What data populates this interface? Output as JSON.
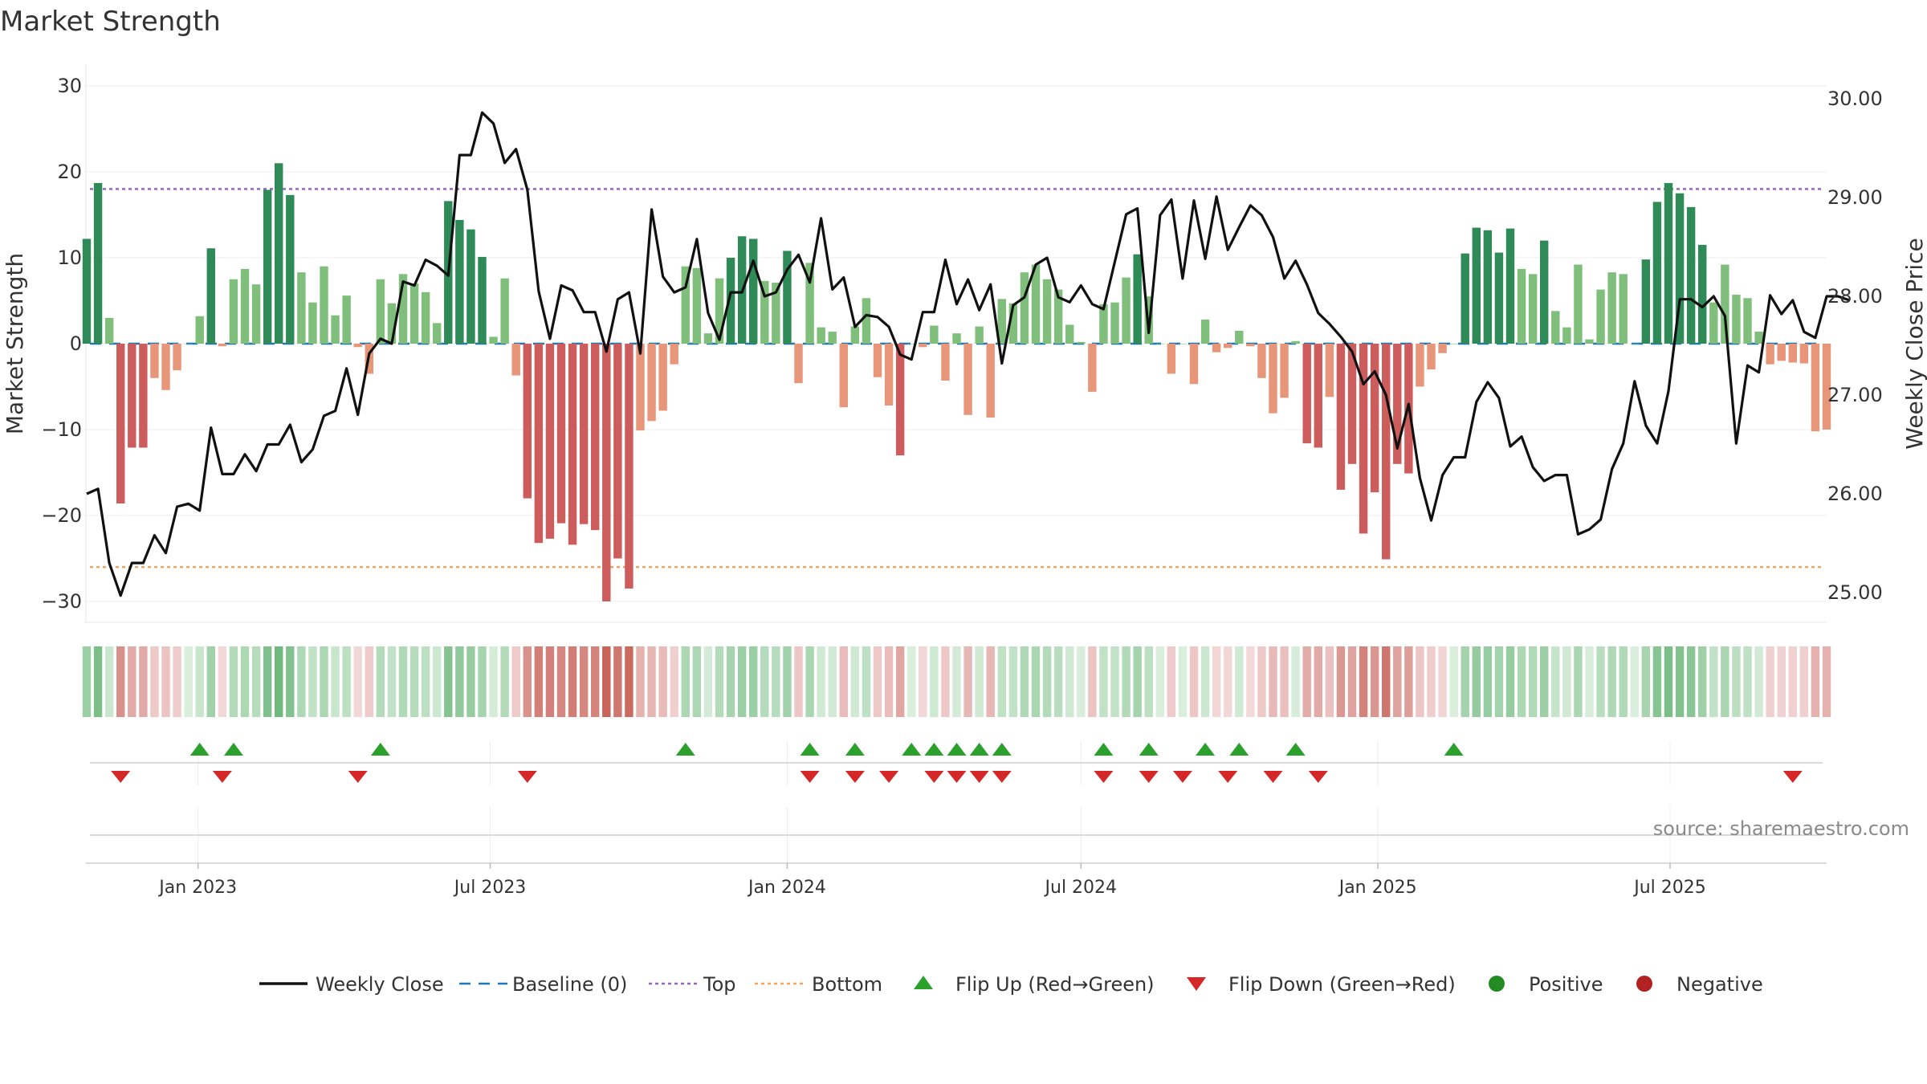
{
  "chart_data": {
    "type": "bar",
    "title": "Market Strength",
    "ylabel_left": "Market Strength",
    "ylabel_right": "Weekly Close Price",
    "ylim_left": [
      -32,
      33
    ],
    "yticks_left": [
      -30,
      -20,
      -10,
      0,
      10,
      20,
      30
    ],
    "ylim_right": [
      24.6,
      30.4
    ],
    "yticks_right": [
      25.0,
      26.0,
      27.0,
      28.0,
      29.0,
      30.0
    ],
    "ytick_labels_right": [
      "25.00",
      "26.00",
      "27.00",
      "28.00",
      "29.00",
      "30.00"
    ],
    "top_line": 18,
    "bottom_line": -26,
    "baseline": 0,
    "start_date": "2022-10-24",
    "end_date": "2025-10-06",
    "x_ticks": [
      {
        "date": "2023-01-01",
        "label": "Jan 2023"
      },
      {
        "date": "2023-07-01",
        "label": "Jul 2023"
      },
      {
        "date": "2024-01-01",
        "label": "Jan 2024"
      },
      {
        "date": "2024-07-01",
        "label": "Jul 2024"
      },
      {
        "date": "2025-01-01",
        "label": "Jan 2025"
      },
      {
        "date": "2025-07-01",
        "label": "Jul 2025"
      }
    ],
    "strength": [
      12.2,
      18.7,
      3.0,
      -18.6,
      -12.1,
      -12.1,
      -4.0,
      -5.4,
      -3.1,
      0,
      3.2,
      11.1,
      -0.3,
      7.5,
      8.7,
      6.9,
      17.9,
      21.0,
      17.3,
      8.3,
      4.8,
      9.0,
      3.3,
      5.6,
      -0.4,
      -3.5,
      7.5,
      4.7,
      8.1,
      7.0,
      6.0,
      2.4,
      16.6,
      14.4,
      13.3,
      10.1,
      0.8,
      7.6,
      -3.7,
      -18.0,
      -23.2,
      -22.7,
      -20.9,
      -23.4,
      -21.0,
      -21.7,
      -30.0,
      -25.0,
      -28.5,
      -10.1,
      -9.0,
      -7.8,
      -2.4,
      9.0,
      8.8,
      1.2,
      7.6,
      10.0,
      12.5,
      12.2,
      7.3,
      7.1,
      10.8,
      -4.6,
      9.4,
      1.9,
      1.4,
      -7.4,
      2.0,
      5.3,
      -3.9,
      -7.2,
      -13.0,
      0,
      -0.4,
      2.1,
      -4.3,
      1.2,
      -8.3,
      2.0,
      -8.6,
      5.2,
      4.7,
      8.3,
      9.2,
      7.5,
      6.3,
      2.2,
      0.2,
      -5.6,
      4.6,
      4.8,
      7.7,
      10.4,
      5.5,
      0,
      -3.5,
      0,
      -4.7,
      2.8,
      -1.0,
      -0.5,
      1.5,
      -0.3,
      -4.0,
      -8.1,
      -6.3,
      0.3,
      -11.6,
      -12.1,
      -6.2,
      -17.0,
      -14.0,
      -22.1,
      -17.3,
      -25.1,
      -14.0,
      -15.1,
      -5.0,
      -3.0,
      -1.1,
      0,
      10.5,
      13.5,
      13.2,
      10.6,
      13.4,
      8.7,
      8.1,
      12.0,
      3.8,
      1.9,
      9.2,
      0.5,
      6.3,
      8.3,
      8.1,
      0,
      9.8,
      16.5,
      18.7,
      17.5,
      15.9,
      11.5,
      4.8,
      9.2,
      5.7,
      5.3,
      1.4,
      -2.4,
      -2.0,
      -2.2,
      -2.3,
      -10.2,
      -10.0
    ],
    "weekly_close": [
      26.0,
      26.05,
      25.3,
      24.97,
      25.3,
      25.3,
      25.58,
      25.4,
      25.87,
      25.9,
      25.83,
      26.67,
      26.2,
      26.2,
      26.4,
      26.23,
      26.5,
      26.5,
      26.7,
      26.32,
      26.45,
      26.79,
      26.84,
      27.27,
      26.8,
      27.42,
      27.57,
      27.52,
      28.15,
      28.11,
      28.37,
      28.31,
      28.21,
      29.43,
      29.43,
      29.86,
      29.75,
      29.35,
      29.49,
      29.08,
      28.05,
      27.57,
      28.11,
      28.06,
      27.84,
      27.84,
      27.44,
      27.97,
      28.04,
      27.42,
      28.88,
      28.2,
      28.04,
      28.09,
      28.58,
      27.83,
      27.56,
      28.04,
      28.04,
      28.36,
      28.0,
      28.04,
      28.27,
      28.42,
      28.14,
      28.79,
      28.07,
      28.19,
      27.69,
      27.81,
      27.79,
      27.69,
      27.41,
      27.36,
      27.84,
      27.84,
      28.37,
      27.92,
      28.17,
      27.86,
      28.12,
      27.32,
      27.91,
      27.99,
      28.32,
      28.39,
      27.99,
      27.94,
      28.11,
      27.92,
      27.87,
      28.35,
      28.83,
      28.89,
      27.63,
      28.82,
      28.98,
      28.18,
      28.97,
      28.38,
      29.01,
      28.47,
      28.7,
      28.92,
      28.82,
      28.6,
      28.18,
      28.36,
      28.12,
      27.83,
      27.72,
      27.59,
      27.44,
      27.11,
      27.24,
      27.0,
      26.46,
      26.91,
      26.16,
      25.73,
      26.19,
      26.37,
      26.37,
      26.93,
      27.13,
      26.97,
      26.48,
      26.58,
      26.27,
      26.13,
      26.19,
      26.19,
      25.59,
      25.64,
      25.74,
      26.25,
      26.51,
      27.14,
      26.69,
      26.51,
      27.04,
      27.97,
      27.97,
      27.89,
      28.0,
      27.8,
      26.51,
      27.3,
      27.23,
      28.01,
      27.82,
      27.96,
      27.64,
      27.58,
      28.0,
      28.0,
      27.96
    ],
    "flip_up": [
      10,
      13,
      26,
      53,
      64,
      68,
      73,
      75,
      77,
      79,
      81,
      90,
      94,
      99,
      102,
      107,
      121
    ],
    "flip_down": [
      3,
      12,
      24,
      39,
      64,
      68,
      71,
      75,
      77,
      79,
      81,
      90,
      94,
      97,
      101,
      105,
      109,
      151
    ],
    "source_text": "source: sharemaestro.com",
    "colors": {
      "strong_positive": "#2e8a57",
      "weak_positive": "#7fbf7b",
      "strong_negative": "#cd5c5c",
      "weak_negative": "#e8967a",
      "line": "#111111",
      "baseline": "#1f77b4",
      "top": "#9467bd",
      "bottom": "#f4a460",
      "flip_up": "#2ca02c",
      "flip_down": "#d62728",
      "positive": "#228b22",
      "negative": "#b22222"
    },
    "legend": [
      {
        "key": "weekly-close",
        "label": "Weekly Close"
      },
      {
        "key": "baseline",
        "label": "Baseline (0)"
      },
      {
        "key": "top",
        "label": "Top"
      },
      {
        "key": "bottom",
        "label": "Bottom"
      },
      {
        "key": "flip-up",
        "label": "Flip Up (Red→Green)"
      },
      {
        "key": "flip-down",
        "label": "Flip Down (Green→Red)"
      },
      {
        "key": "positive",
        "label": "Positive"
      },
      {
        "key": "negative",
        "label": "Negative"
      }
    ],
    "legend_placement": "bottom-center"
  }
}
